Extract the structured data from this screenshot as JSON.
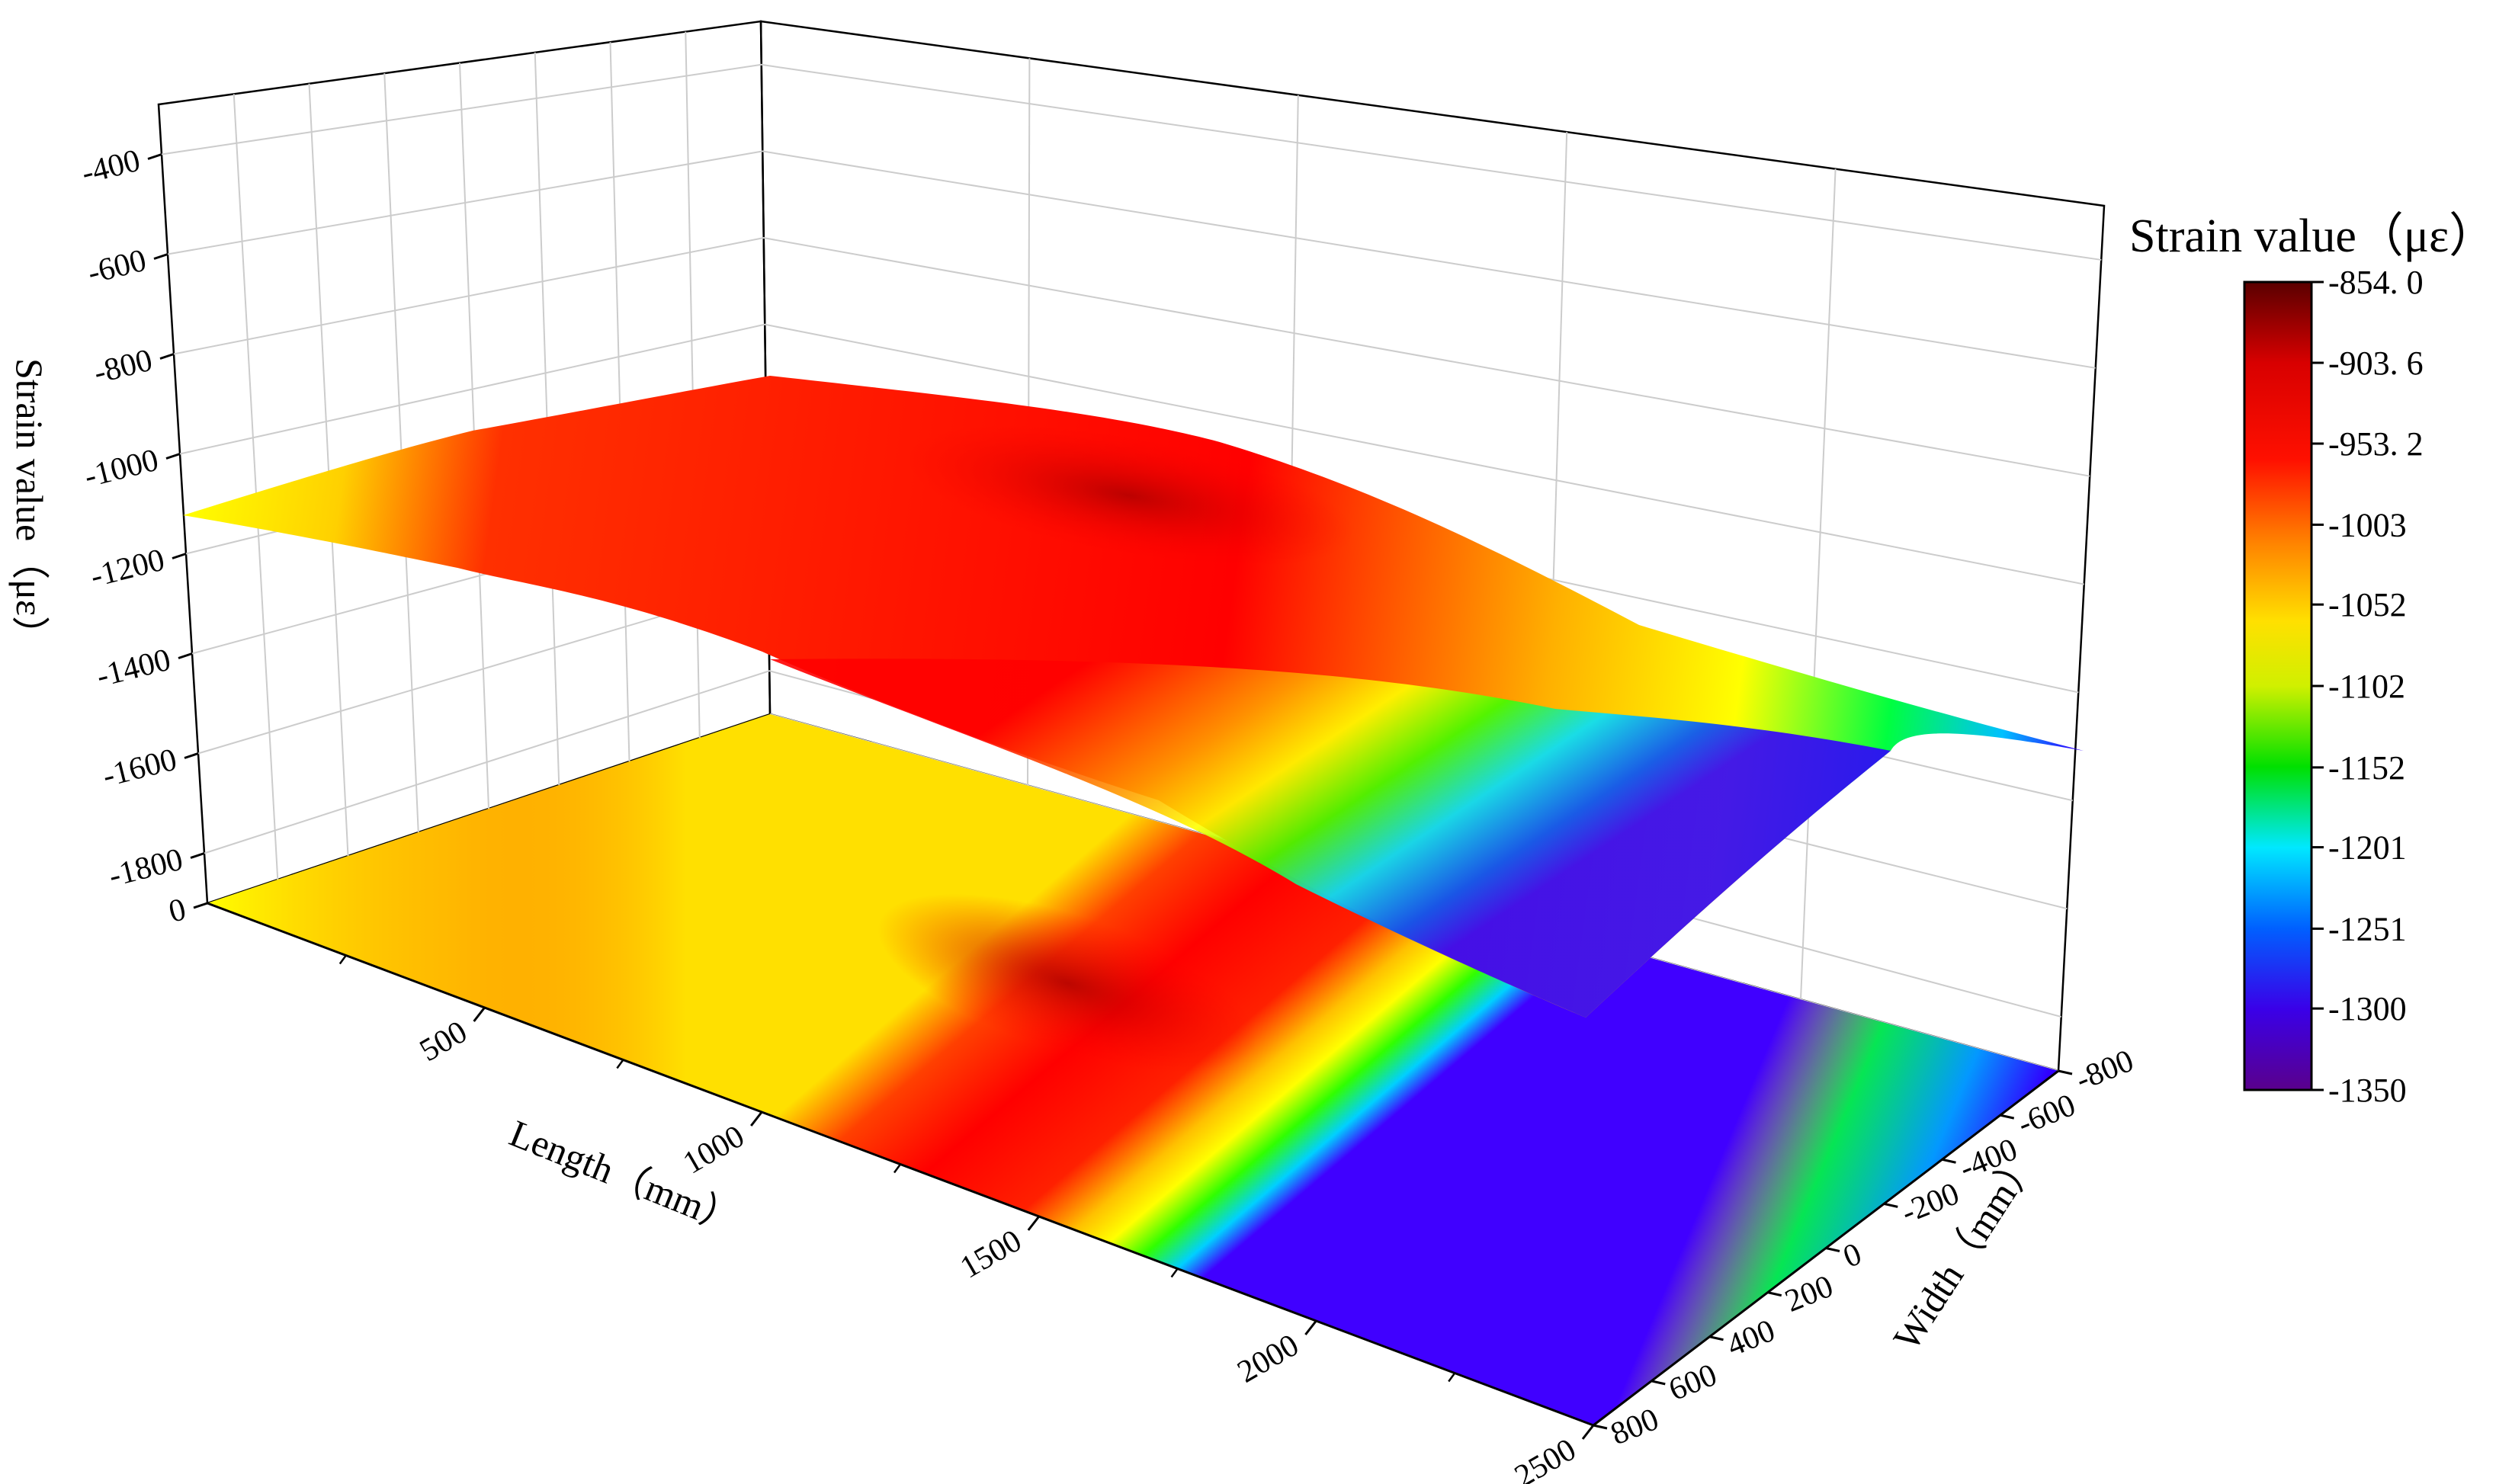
{
  "chart_data": {
    "type": "surface3d",
    "title": "",
    "axes": {
      "z": {
        "label": "Strain value（με）",
        "ticks": [
          -400,
          -600,
          -800,
          -1000,
          -1200,
          -1400,
          -1600,
          -1800,
          0
        ],
        "tick_labels": [
          "-400",
          "-600",
          "-800",
          "-1000",
          "-1200",
          "-1400",
          "-1600",
          "-1800",
          "0"
        ],
        "range": [
          -1900,
          -300
        ]
      },
      "x": {
        "label": "Length（mm）",
        "ticks": [
          500,
          1000,
          1500,
          2000,
          2500
        ],
        "tick_labels": [
          "500",
          "1000",
          "1500",
          "2000",
          "2500"
        ],
        "range": [
          0,
          2500
        ]
      },
      "y": {
        "label": "Width（mm）",
        "ticks": [
          -800,
          -600,
          -400,
          -200,
          0,
          200,
          400,
          600,
          800
        ],
        "tick_labels": [
          "-800",
          "-600",
          "-400",
          "-200",
          "0",
          "200",
          "400",
          "600",
          "800"
        ],
        "range": [
          -800,
          800
        ]
      }
    },
    "colorbar": {
      "title": "Strain value（με）",
      "ticks": [
        -854.0,
        -903.6,
        -953.2,
        -1003,
        -1052,
        -1102,
        -1152,
        -1201,
        -1251,
        -1300,
        -1350
      ],
      "tick_labels": [
        "-854. 0",
        "-903. 6",
        "-953. 2",
        "-1003",
        "-1052",
        "-1102",
        "-1152",
        "-1201",
        "-1251",
        "-1300",
        "-1350"
      ],
      "range": [
        -1350,
        -854
      ]
    },
    "grid": true,
    "projection_contour": true
  }
}
